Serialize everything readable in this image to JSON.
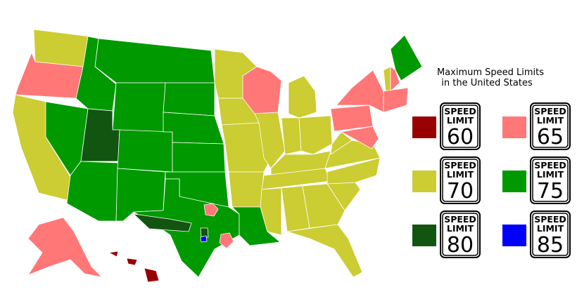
{
  "title": [
    "Maximum Speed Limits",
    "in the United States"
  ],
  "sign_top": "SPEED",
  "sign_middle": "LIMIT",
  "legend": [
    {
      "color": "#990000",
      "value": 60
    },
    {
      "color": "#ff7777",
      "value": 65
    },
    {
      "color": "#cccc33",
      "value": 70
    },
    {
      "color": "#009900",
      "value": 75
    },
    {
      "color": "#115511",
      "value": 80
    },
    {
      "color": "#0000ff",
      "value": 85
    }
  ]
}
